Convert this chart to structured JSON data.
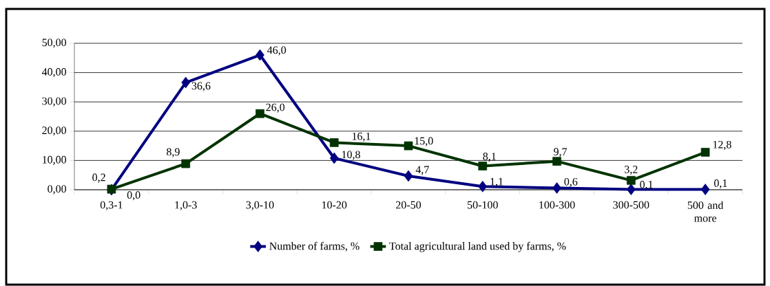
{
  "chart_data": {
    "type": "line",
    "categories": [
      "0,3-1",
      "1,0-3",
      "3,0-10",
      "10-20",
      "20-50",
      "50-100",
      "100-300",
      "300-500",
      "500 and more"
    ],
    "series": [
      {
        "name": "Number of farms, %",
        "color": "#000080",
        "marker": "diamond",
        "values": [
          0.0,
          36.6,
          46.0,
          10.8,
          4.7,
          1.1,
          0.6,
          0.1,
          0.1
        ],
        "value_labels": [
          "0,0",
          "36,6",
          "46,0",
          "10,8",
          "4,7",
          "1,1",
          "0,6",
          "0,1",
          "0,1"
        ]
      },
      {
        "name": "Total agricultural land used by farms, %",
        "color": "#003300",
        "marker": "square",
        "values": [
          0.2,
          8.9,
          26.0,
          16.1,
          15.0,
          8.1,
          9.7,
          3.2,
          12.8
        ],
        "value_labels": [
          "0,2",
          "8,9",
          "26,0",
          "16,1",
          "15,0",
          "8,1",
          "9,7",
          "3,2",
          "12,8"
        ]
      }
    ],
    "ylim": [
      0,
      50
    ],
    "yticks": [
      {
        "value": 0,
        "label": "0,00"
      },
      {
        "value": 10,
        "label": "10,00"
      },
      {
        "value": 20,
        "label": "20,00"
      },
      {
        "value": 30,
        "label": "30,00"
      },
      {
        "value": 40,
        "label": "40,00"
      },
      {
        "value": 50,
        "label": "50,00"
      }
    ],
    "grid": "y",
    "legend": "bottom",
    "line_style": "solid"
  }
}
